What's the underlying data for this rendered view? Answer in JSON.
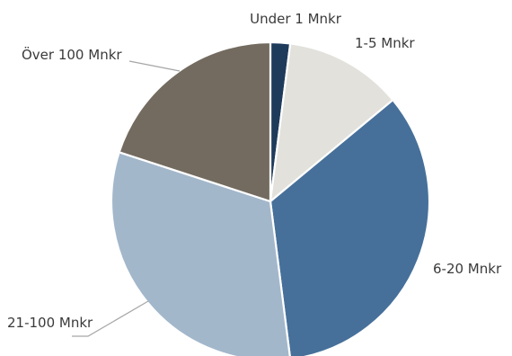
{
  "chart_data": {
    "type": "pie",
    "title": "",
    "start_angle_deg": 0,
    "direction": "clockwise",
    "slices": [
      {
        "label": "Under 1 Mnkr",
        "value": 2,
        "color": "#1f3b5c"
      },
      {
        "label": "1-5 Mnkr",
        "value": 12,
        "color": "#e2e1dc"
      },
      {
        "label": "6-20 Mnkr",
        "value": 34,
        "color": "#46709a"
      },
      {
        "label": "21-100 Mnkr",
        "value": 32,
        "color": "#a3b7cb"
      },
      {
        "label": "Över 100 Mnkr",
        "value": 20,
        "color": "#736b5f"
      }
    ]
  }
}
